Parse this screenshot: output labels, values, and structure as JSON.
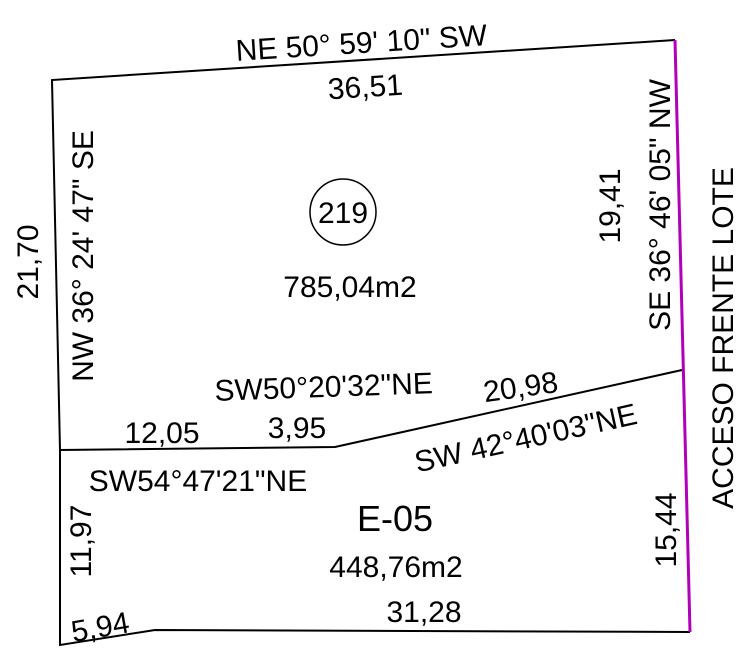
{
  "colors": {
    "line": "#000000",
    "frontage": "#b000b8",
    "background": "#ffffff"
  },
  "lots": [
    {
      "id": "219",
      "area": "785,04m2"
    },
    {
      "id": "E-05",
      "area": "448,76m2"
    }
  ],
  "edges": {
    "top_bearing": "NE 50° 59' 10\" SW",
    "top_length": "36,51",
    "left_bearing": "NW 36° 24' 47\" SE",
    "left_length": "21,70",
    "right_bearing": "SE 36° 46' 05\" NW",
    "right_length": "19,41",
    "divider_upper_bearing": "SW50°20'32\"NE",
    "divider_segment_a": "12,05",
    "divider_segment_b": "3,95",
    "divider_segment_c": "20,98",
    "divider_lower_bearing": "SW 42°40'03\"NE",
    "e05_left_bearing": "SW54°47'21\"NE",
    "e05_left_length": "11,97",
    "e05_right_length": "15,44",
    "bottom_left_length": "5,94",
    "bottom_length": "31,28"
  },
  "frontage_label": "ACCESO FRENTE LOTE"
}
